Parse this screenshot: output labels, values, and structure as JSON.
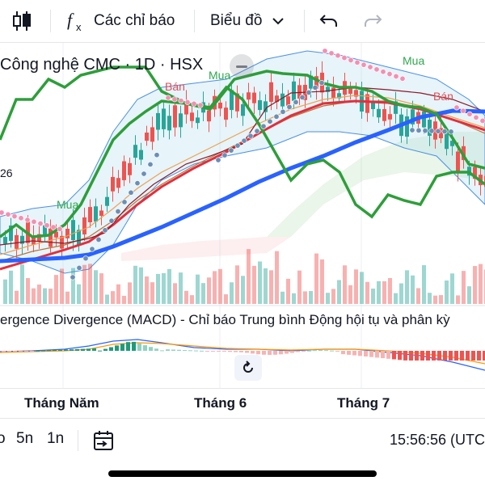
{
  "toolbar": {
    "indicators_label": "Các chỉ báo",
    "chart_type_label": "Biểu đồ",
    "icons": [
      "candle-icon",
      "fx-icon",
      "chevron-down-icon",
      "undo-icon",
      "redo-icon"
    ]
  },
  "chart": {
    "symbol_title": "Công nghệ CMC · 1D · HSX",
    "price_scale_label": "26",
    "signals": [
      {
        "text": "Bán",
        "kind": "sell"
      },
      {
        "text": "Mua",
        "kind": "buy"
      },
      {
        "text": "Mua",
        "kind": "buy"
      },
      {
        "text": "Mua",
        "kind": "buy"
      },
      {
        "text": "Bán",
        "kind": "sell"
      }
    ],
    "colors": {
      "up": "#26a69a",
      "down": "#ef5350",
      "ma_long": "#2962ff",
      "ma_green": "#2e9e3a",
      "ma_red": "#e0303e",
      "dots": "#6b8fb5",
      "sell_dots": "#f48fb1",
      "band": "#a8d8ea",
      "signal_sell": "#e0505a",
      "signal_buy": "#2ea84f"
    }
  },
  "macd": {
    "title": "ergence Divergence (MACD) - Chỉ báo Trung bình Động hội tụ và phân kỳ"
  },
  "time_axis": {
    "labels": [
      "Tháng Năm",
      "Tháng 6",
      "Tháng 7"
    ]
  },
  "bottom": {
    "ranges": [
      "o",
      "5n",
      "1n"
    ],
    "clock": "15:56:56 (UTC"
  }
}
